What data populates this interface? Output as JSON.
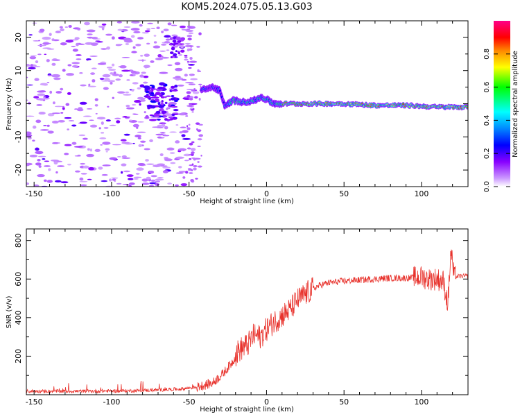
{
  "title": "KOM5.2024.075.05.13.G03",
  "chart_data": [
    {
      "type": "heatmap",
      "xlabel": "Height of straight line (km)",
      "ylabel": "Frequency (Hz)",
      "xlim": [
        -155,
        130
      ],
      "ylim": [
        -25,
        25
      ],
      "xticks": [
        -150,
        -100,
        -50,
        0,
        50,
        100
      ],
      "yticks": [
        -20,
        -10,
        0,
        10,
        20
      ],
      "colorbar": {
        "label": "Normalized spectral amplitude",
        "range": [
          0,
          1
        ],
        "ticks": [
          0.0,
          0.2,
          0.4,
          0.6,
          0.8
        ]
      },
      "trace": {
        "x": [
          -42,
          -35,
          -30,
          -27,
          -22,
          -15,
          -8,
          -3,
          5,
          15,
          30,
          50,
          70,
          90,
          110,
          130
        ],
        "freq": [
          4,
          5,
          4,
          -1,
          1,
          0.5,
          1,
          2,
          0,
          0,
          0,
          0,
          -0.5,
          -0.5,
          -1,
          -1
        ]
      }
    },
    {
      "type": "line",
      "xlabel": "Height of straight line (km)",
      "ylabel": "SNR (v/v)",
      "xlim": [
        -155,
        130
      ],
      "ylim": [
        0,
        860
      ],
      "xticks": [
        -150,
        -100,
        -50,
        0,
        50,
        100
      ],
      "yticks": [
        200,
        400,
        600,
        800
      ],
      "series": [
        {
          "color": "#e8322c",
          "x": [
            -155,
            -120,
            -90,
            -70,
            -55,
            -45,
            -35,
            -28,
            -22,
            -18,
            -12,
            -8,
            -4,
            0,
            5,
            10,
            15,
            20,
            25,
            30,
            35,
            40,
            50,
            60,
            70,
            80,
            90,
            100,
            105,
            110,
            114,
            117,
            119,
            121,
            125,
            130
          ],
          "y": [
            18,
            18,
            20,
            25,
            30,
            40,
            60,
            110,
            170,
            230,
            260,
            310,
            300,
            340,
            380,
            410,
            440,
            490,
            520,
            550,
            570,
            580,
            590,
            595,
            600,
            605,
            605,
            610,
            600,
            600,
            590,
            470,
            750,
            610,
            615,
            615
          ]
        }
      ]
    }
  ],
  "colors": {
    "background": "#ffffff",
    "line": "#e8322c"
  }
}
